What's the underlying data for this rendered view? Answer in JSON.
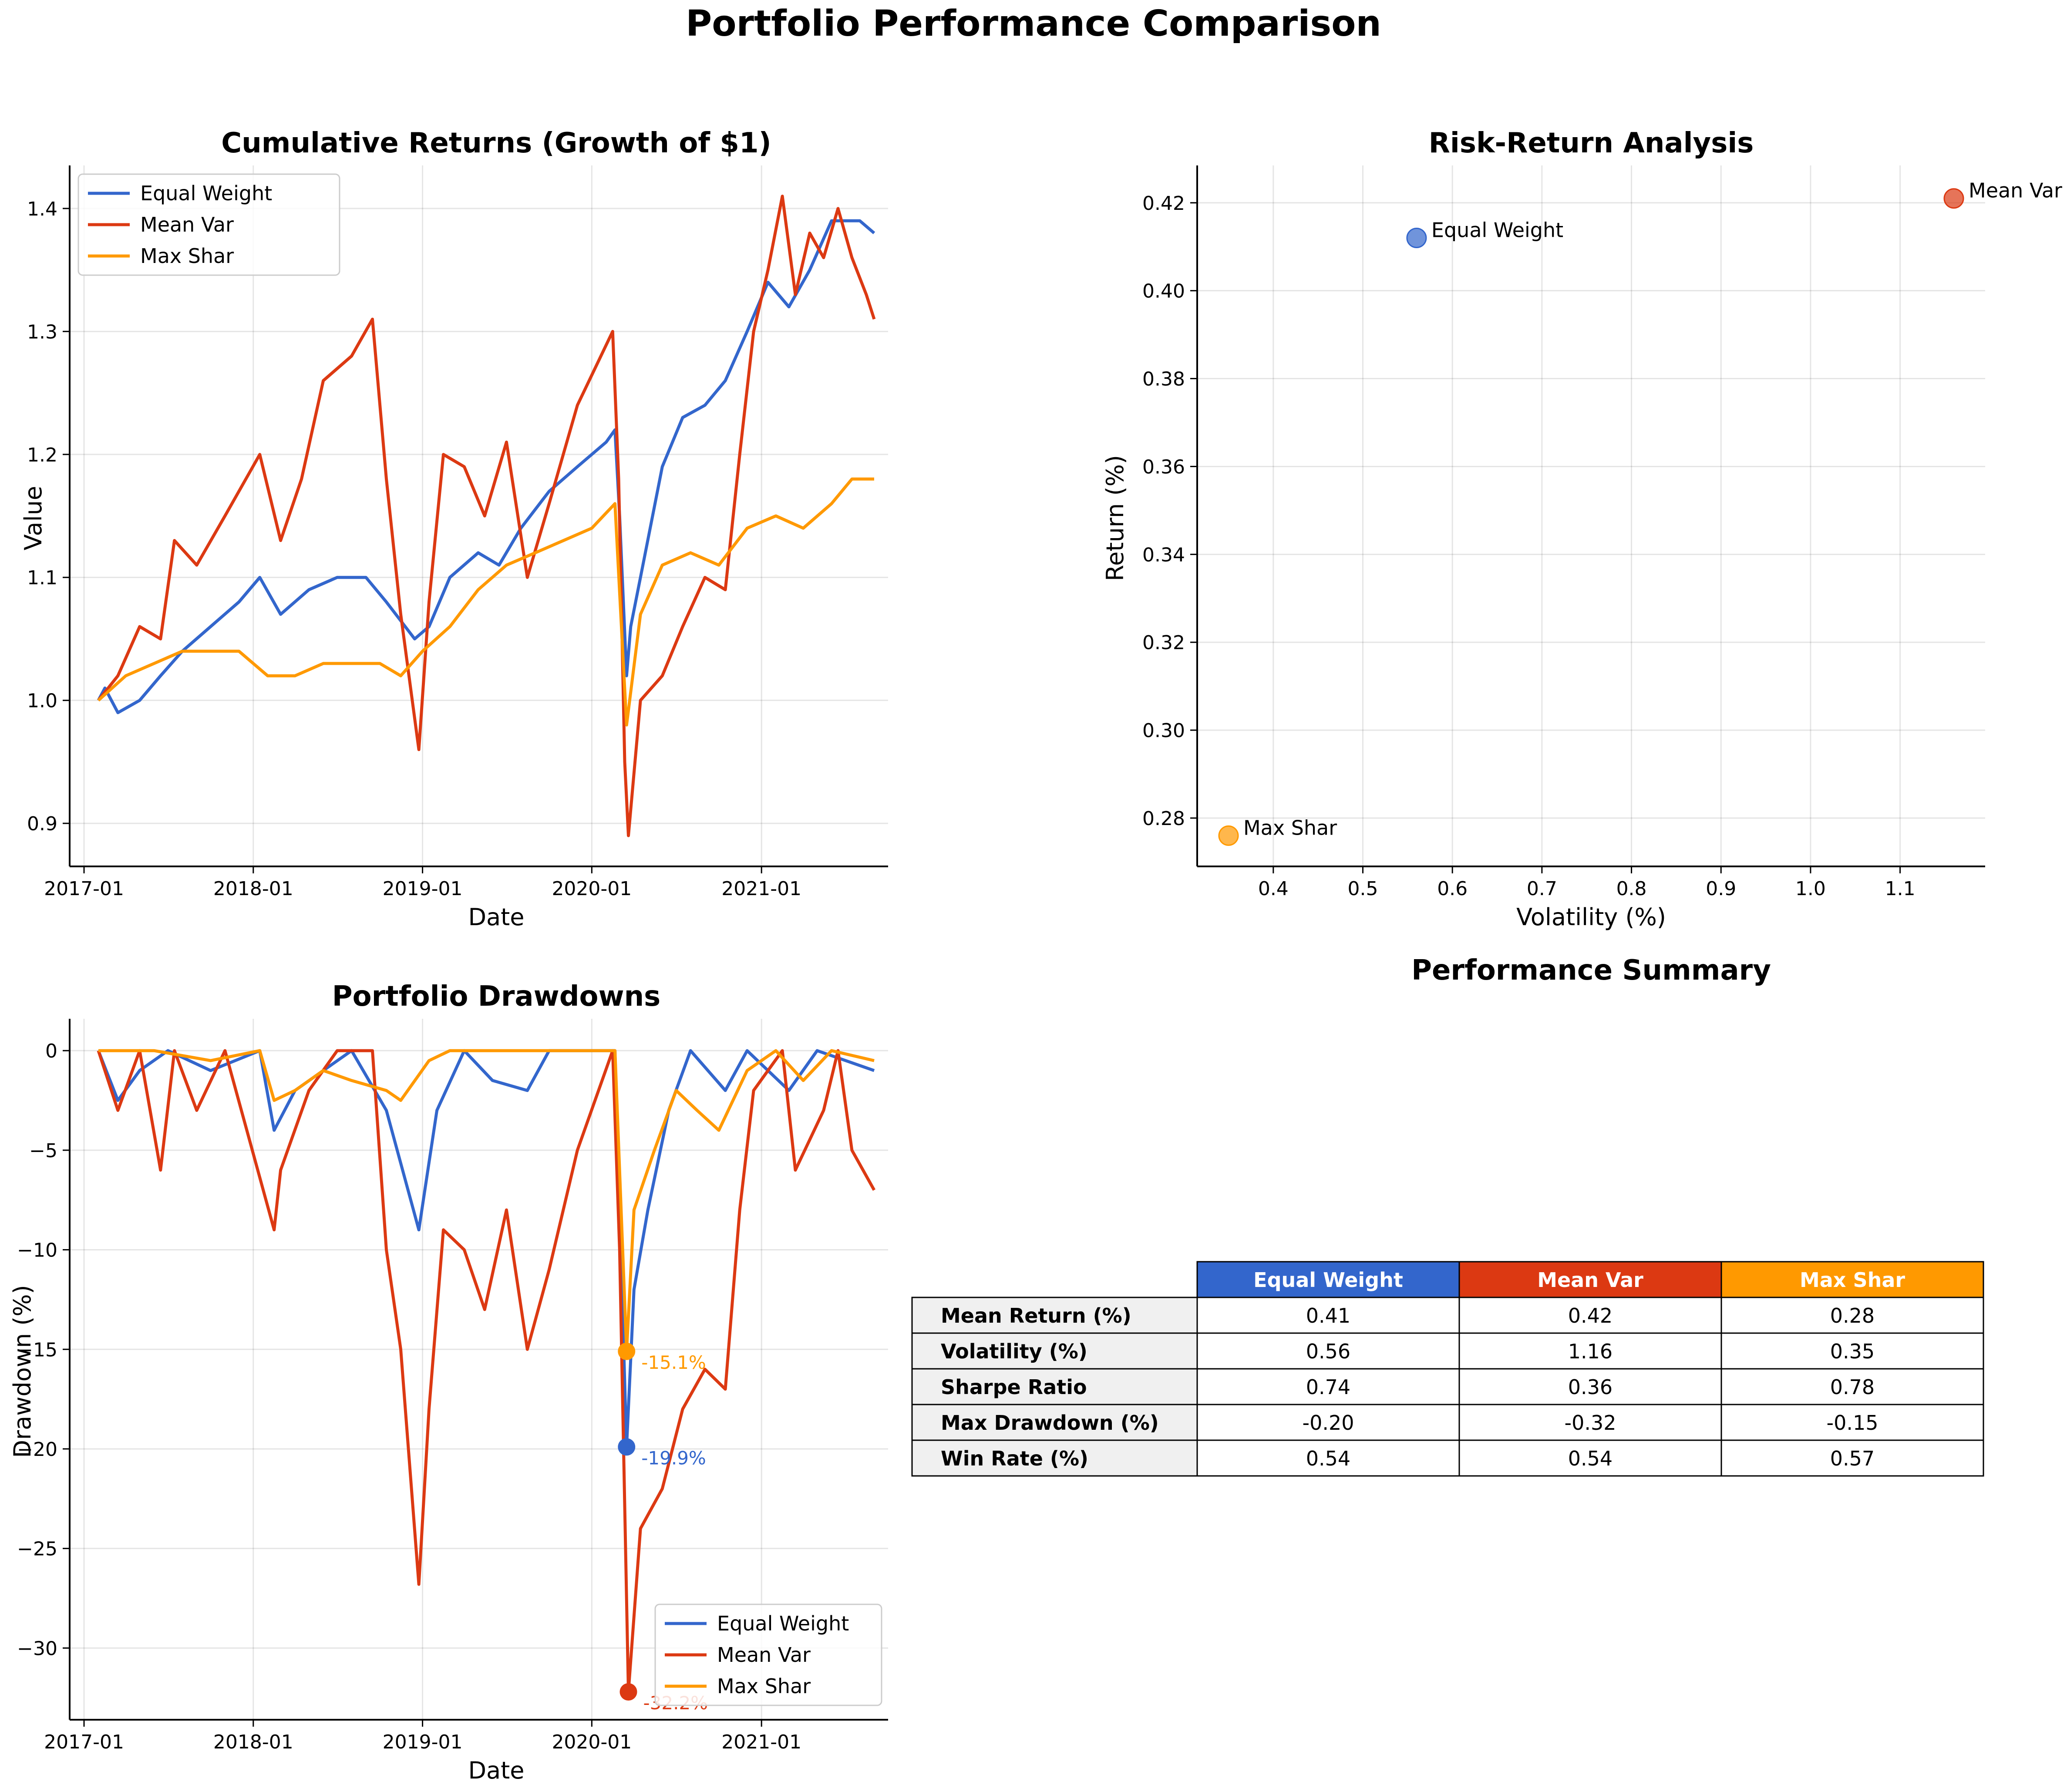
{
  "title": "Portfolio Performance Comparison",
  "colors": {
    "Equal Weight": "#3366cc",
    "Mean Var": "#dc3912",
    "Max Shar": "#ff9900"
  },
  "chart_data": [
    {
      "type": "line",
      "title": "Cumulative Returns (Growth of $1)",
      "xlabel": "Date",
      "ylabel": "Value",
      "x_ticks": [
        "2017-01",
        "2018-01",
        "2019-01",
        "2020-01",
        "2021-01"
      ],
      "y_ticks": [
        "0.9",
        "1.0",
        "1.1",
        "1.2",
        "1.3",
        "1.4"
      ],
      "ylim": [
        0.865,
        1.435
      ],
      "legend": "top-left",
      "grid": true,
      "series": [
        {
          "name": "Equal Weight",
          "points": [
            [
              "2017-02-01",
              1.0
            ],
            [
              "2017-02-15",
              1.01
            ],
            [
              "2017-03-15",
              0.99
            ],
            [
              "2017-05-01",
              1.0
            ],
            [
              "2017-06-15",
              1.02
            ],
            [
              "2017-08-01",
              1.04
            ],
            [
              "2017-10-01",
              1.06
            ],
            [
              "2017-12-01",
              1.08
            ],
            [
              "2018-01-15",
              1.1
            ],
            [
              "2018-03-01",
              1.07
            ],
            [
              "2018-05-01",
              1.09
            ],
            [
              "2018-07-01",
              1.1
            ],
            [
              "2018-09-01",
              1.1
            ],
            [
              "2018-10-15",
              1.08
            ],
            [
              "2018-12-15",
              1.05
            ],
            [
              "2019-01-15",
              1.06
            ],
            [
              "2019-03-01",
              1.1
            ],
            [
              "2019-05-01",
              1.12
            ],
            [
              "2019-06-15",
              1.11
            ],
            [
              "2019-08-01",
              1.14
            ],
            [
              "2019-10-01",
              1.17
            ],
            [
              "2019-12-01",
              1.19
            ],
            [
              "2020-02-01",
              1.21
            ],
            [
              "2020-02-20",
              1.22
            ],
            [
              "2020-03-01",
              1.15
            ],
            [
              "2020-03-16",
              1.02
            ],
            [
              "2020-03-25",
              1.06
            ],
            [
              "2020-04-15",
              1.1
            ],
            [
              "2020-06-01",
              1.19
            ],
            [
              "2020-07-15",
              1.23
            ],
            [
              "2020-09-01",
              1.24
            ],
            [
              "2020-10-15",
              1.26
            ],
            [
              "2020-12-01",
              1.3
            ],
            [
              "2021-01-15",
              1.34
            ],
            [
              "2021-03-01",
              1.32
            ],
            [
              "2021-04-15",
              1.35
            ],
            [
              "2021-06-01",
              1.39
            ],
            [
              "2021-08-01",
              1.39
            ],
            [
              "2021-09-01",
              1.38
            ]
          ]
        },
        {
          "name": "Mean Var",
          "points": [
            [
              "2017-02-01",
              1.0
            ],
            [
              "2017-03-15",
              1.02
            ],
            [
              "2017-05-01",
              1.06
            ],
            [
              "2017-06-15",
              1.05
            ],
            [
              "2017-07-15",
              1.13
            ],
            [
              "2017-09-01",
              1.11
            ],
            [
              "2017-11-01",
              1.15
            ],
            [
              "2018-01-15",
              1.2
            ],
            [
              "2018-03-01",
              1.13
            ],
            [
              "2018-04-15",
              1.18
            ],
            [
              "2018-06-01",
              1.26
            ],
            [
              "2018-08-01",
              1.28
            ],
            [
              "2018-09-15",
              1.31
            ],
            [
              "2018-10-15",
              1.18
            ],
            [
              "2018-11-15",
              1.07
            ],
            [
              "2018-12-24",
              0.96
            ],
            [
              "2019-01-15",
              1.08
            ],
            [
              "2019-02-15",
              1.2
            ],
            [
              "2019-04-01",
              1.19
            ],
            [
              "2019-05-15",
              1.15
            ],
            [
              "2019-07-01",
              1.21
            ],
            [
              "2019-08-15",
              1.1
            ],
            [
              "2019-10-01",
              1.16
            ],
            [
              "2019-12-01",
              1.24
            ],
            [
              "2020-02-15",
              1.3
            ],
            [
              "2020-02-28",
              1.18
            ],
            [
              "2020-03-12",
              0.95
            ],
            [
              "2020-03-20",
              0.89
            ],
            [
              "2020-04-15",
              1.0
            ],
            [
              "2020-06-01",
              1.02
            ],
            [
              "2020-07-15",
              1.06
            ],
            [
              "2020-09-01",
              1.1
            ],
            [
              "2020-10-15",
              1.09
            ],
            [
              "2020-11-15",
              1.2
            ],
            [
              "2020-12-15",
              1.3
            ],
            [
              "2021-01-15",
              1.35
            ],
            [
              "2021-02-15",
              1.41
            ],
            [
              "2021-03-15",
              1.33
            ],
            [
              "2021-04-15",
              1.38
            ],
            [
              "2021-05-15",
              1.36
            ],
            [
              "2021-06-15",
              1.4
            ],
            [
              "2021-07-15",
              1.36
            ],
            [
              "2021-08-15",
              1.33
            ],
            [
              "2021-09-01",
              1.31
            ]
          ]
        },
        {
          "name": "Max Shar",
          "points": [
            [
              "2017-02-01",
              1.0
            ],
            [
              "2017-04-01",
              1.02
            ],
            [
              "2017-06-01",
              1.03
            ],
            [
              "2017-08-01",
              1.04
            ],
            [
              "2017-10-01",
              1.04
            ],
            [
              "2017-12-01",
              1.04
            ],
            [
              "2018-02-01",
              1.02
            ],
            [
              "2018-04-01",
              1.02
            ],
            [
              "2018-06-01",
              1.03
            ],
            [
              "2018-08-01",
              1.03
            ],
            [
              "2018-10-01",
              1.03
            ],
            [
              "2018-11-15",
              1.02
            ],
            [
              "2019-01-01",
              1.04
            ],
            [
              "2019-03-01",
              1.06
            ],
            [
              "2019-05-01",
              1.09
            ],
            [
              "2019-07-01",
              1.11
            ],
            [
              "2019-09-01",
              1.12
            ],
            [
              "2019-11-01",
              1.13
            ],
            [
              "2020-01-01",
              1.14
            ],
            [
              "2020-02-20",
              1.16
            ],
            [
              "2020-03-16",
              0.98
            ],
            [
              "2020-04-15",
              1.07
            ],
            [
              "2020-06-01",
              1.11
            ],
            [
              "2020-08-01",
              1.12
            ],
            [
              "2020-10-01",
              1.11
            ],
            [
              "2020-12-01",
              1.14
            ],
            [
              "2021-02-01",
              1.15
            ],
            [
              "2021-04-01",
              1.14
            ],
            [
              "2021-06-01",
              1.16
            ],
            [
              "2021-07-15",
              1.18
            ],
            [
              "2021-09-01",
              1.18
            ]
          ]
        }
      ]
    },
    {
      "type": "scatter",
      "title": "Risk-Return Analysis",
      "xlabel": "Volatility (%)",
      "ylabel": "Return (%)",
      "x_ticks": [
        "0.4",
        "0.5",
        "0.6",
        "0.7",
        "0.8",
        "0.9",
        "1.0",
        "1.1"
      ],
      "y_ticks": [
        "0.28",
        "0.30",
        "0.32",
        "0.34",
        "0.36",
        "0.38",
        "0.40",
        "0.42"
      ],
      "xlim": [
        0.315,
        1.195
      ],
      "ylim": [
        0.269,
        0.4285
      ],
      "grid": true,
      "points": [
        {
          "label": "Equal Weight",
          "x": 0.56,
          "y": 0.412
        },
        {
          "label": "Mean Var",
          "x": 1.16,
          "y": 0.421
        },
        {
          "label": "Max Shar",
          "x": 0.35,
          "y": 0.276
        }
      ]
    },
    {
      "type": "line",
      "title": "Portfolio Drawdowns",
      "xlabel": "Date",
      "ylabel": "Drawdown (%)",
      "x_ticks": [
        "2017-01",
        "2018-01",
        "2019-01",
        "2020-01",
        "2021-01"
      ],
      "y_ticks": [
        "0",
        "−5",
        "−10",
        "−15",
        "−20",
        "−25",
        "−30"
      ],
      "ylim": [
        -33.6,
        1.6
      ],
      "legend": "bottom-right",
      "grid": true,
      "series": [
        {
          "name": "Equal Weight",
          "points": [
            [
              "2017-02-01",
              0
            ],
            [
              "2017-03-15",
              -2.5
            ],
            [
              "2017-05-01",
              -1
            ],
            [
              "2017-07-01",
              0
            ],
            [
              "2017-10-01",
              -1
            ],
            [
              "2018-01-15",
              0
            ],
            [
              "2018-02-15",
              -4
            ],
            [
              "2018-04-01",
              -2
            ],
            [
              "2018-06-01",
              -1
            ],
            [
              "2018-08-01",
              0
            ],
            [
              "2018-10-15",
              -3
            ],
            [
              "2018-12-24",
              -9
            ],
            [
              "2019-02-01",
              -3
            ],
            [
              "2019-04-01",
              0
            ],
            [
              "2019-06-01",
              -1.5
            ],
            [
              "2019-08-15",
              -2
            ],
            [
              "2019-10-01",
              0
            ],
            [
              "2020-02-20",
              0
            ],
            [
              "2020-03-16",
              -19.9
            ],
            [
              "2020-04-01",
              -12
            ],
            [
              "2020-05-01",
              -8
            ],
            [
              "2020-06-15",
              -3
            ],
            [
              "2020-08-01",
              0
            ],
            [
              "2020-10-15",
              -2
            ],
            [
              "2020-12-01",
              0
            ],
            [
              "2021-03-01",
              -2
            ],
            [
              "2021-05-01",
              0
            ],
            [
              "2021-09-01",
              -1
            ]
          ]
        },
        {
          "name": "Mean Var",
          "points": [
            [
              "2017-02-01",
              0
            ],
            [
              "2017-03-15",
              -3
            ],
            [
              "2017-05-01",
              0
            ],
            [
              "2017-06-15",
              -6
            ],
            [
              "2017-07-15",
              0
            ],
            [
              "2017-09-01",
              -3
            ],
            [
              "2017-11-01",
              0
            ],
            [
              "2018-02-15",
              -9
            ],
            [
              "2018-03-01",
              -6
            ],
            [
              "2018-05-01",
              -2
            ],
            [
              "2018-07-01",
              0
            ],
            [
              "2018-09-15",
              0
            ],
            [
              "2018-10-15",
              -10
            ],
            [
              "2018-11-15",
              -15
            ],
            [
              "2018-12-24",
              -26.8
            ],
            [
              "2019-01-15",
              -18
            ],
            [
              "2019-02-15",
              -9
            ],
            [
              "2019-04-01",
              -10
            ],
            [
              "2019-05-15",
              -13
            ],
            [
              "2019-07-01",
              -8
            ],
            [
              "2019-08-15",
              -15
            ],
            [
              "2019-10-01",
              -11
            ],
            [
              "2019-12-01",
              -5
            ],
            [
              "2020-02-15",
              0
            ],
            [
              "2020-03-01",
              -10
            ],
            [
              "2020-03-20",
              -32.2
            ],
            [
              "2020-04-15",
              -24
            ],
            [
              "2020-06-01",
              -22
            ],
            [
              "2020-07-15",
              -18
            ],
            [
              "2020-09-01",
              -16
            ],
            [
              "2020-10-15",
              -17
            ],
            [
              "2020-11-15",
              -8
            ],
            [
              "2020-12-15",
              -2
            ],
            [
              "2021-02-15",
              0
            ],
            [
              "2021-03-15",
              -6
            ],
            [
              "2021-05-15",
              -3
            ],
            [
              "2021-06-15",
              0
            ],
            [
              "2021-07-15",
              -5
            ],
            [
              "2021-09-01",
              -7
            ]
          ]
        },
        {
          "name": "Max Shar",
          "points": [
            [
              "2017-02-01",
              0
            ],
            [
              "2017-06-01",
              0
            ],
            [
              "2017-10-01",
              -0.5
            ],
            [
              "2018-01-15",
              0
            ],
            [
              "2018-02-15",
              -2.5
            ],
            [
              "2018-04-01",
              -2
            ],
            [
              "2018-06-01",
              -1
            ],
            [
              "2018-08-01",
              -1.5
            ],
            [
              "2018-10-15",
              -2
            ],
            [
              "2018-11-15",
              -2.5
            ],
            [
              "2019-01-15",
              -0.5
            ],
            [
              "2019-03-01",
              0
            ],
            [
              "2019-09-01",
              0
            ],
            [
              "2020-02-20",
              0
            ],
            [
              "2020-03-16",
              -15.1
            ],
            [
              "2020-04-01",
              -8
            ],
            [
              "2020-05-15",
              -5
            ],
            [
              "2020-07-01",
              -2
            ],
            [
              "2020-08-15",
              -3
            ],
            [
              "2020-10-01",
              -4
            ],
            [
              "2020-12-01",
              -1
            ],
            [
              "2021-02-01",
              0
            ],
            [
              "2021-04-01",
              -1.5
            ],
            [
              "2021-06-01",
              0
            ],
            [
              "2021-09-01",
              -0.5
            ]
          ]
        }
      ],
      "annotations": [
        {
          "series": "Equal Weight",
          "date": "2020-03-16",
          "value": -19.9,
          "text": "-19.9%"
        },
        {
          "series": "Mean Var",
          "date": "2020-03-20",
          "value": -32.2,
          "text": "-32.2%"
        },
        {
          "series": "Max Shar",
          "date": "2020-03-16",
          "value": -15.1,
          "text": "-15.1%"
        }
      ]
    },
    {
      "type": "table",
      "title": "Performance Summary",
      "columns": [
        "Equal Weight",
        "Mean Var",
        "Max Shar"
      ],
      "rows": [
        {
          "label": "Mean Return (%)",
          "values": [
            "0.41",
            "0.42",
            "0.28"
          ]
        },
        {
          "label": "Volatility (%)",
          "values": [
            "0.56",
            "1.16",
            "0.35"
          ]
        },
        {
          "label": "Sharpe Ratio",
          "values": [
            "0.74",
            "0.36",
            "0.78"
          ]
        },
        {
          "label": "Max Drawdown (%)",
          "values": [
            "-0.20",
            "-0.32",
            "-0.15"
          ]
        },
        {
          "label": "Win Rate (%)",
          "values": [
            "0.54",
            "0.54",
            "0.57"
          ]
        }
      ]
    }
  ]
}
